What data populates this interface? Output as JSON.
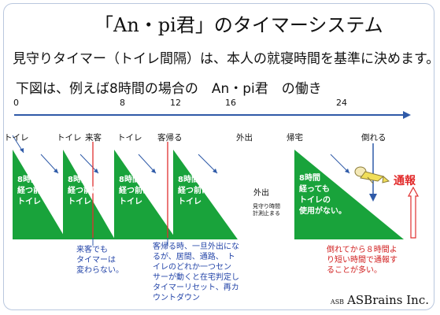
{
  "title": "「An・pi君」のタイマーシステム",
  "subtitle": "見守りタイマー（トイレ間隔）は、本人の就寝時間を基準に決めます。",
  "example": "下図は、例えば8時間の場合の　An・pi君　の働き",
  "timeline": {
    "labels": [
      "0",
      "8",
      "12",
      "16",
      "24"
    ]
  },
  "events": {
    "toilet1": "トイレ",
    "toilet2": "トイレ",
    "visitor": "来客",
    "toilet3": "トイレ",
    "leave": "客帰る",
    "out": "外出",
    "home": "帰宅",
    "fall": "倒れる"
  },
  "blocks": {
    "b1": "8時間\n経つ前に\nトイレ",
    "b2": "8時間\n経つ前に\nトイレ",
    "b3": "8時間\n経つ前に\nトイレ",
    "b4": "8時間\n経つ前に\nトイレ",
    "b5": "8時間\n経っても\nトイレの\n使用がない。"
  },
  "outing": {
    "label": "外出",
    "note": "見守り時間\n計測止まる"
  },
  "notes": {
    "visitor_note": "来客でも\nタイマーは\n変わらない。",
    "leave_note": "客帰る時、一旦外出にな\nるが、居間、通路、　ト\nイレのどれか一つセン\nサーが動くと在宅判定し\nタイマーリセット、再カ\nウントダウン",
    "fall_note": "倒れてから８時間よ\nり短い時間で通報す\nることが多い。"
  },
  "alert": "通報",
  "brand": {
    "prefix": "ASB",
    "name": "ASBrains Inc."
  },
  "colors": {
    "green": "#19a33b",
    "blue": "#2f5aa8",
    "red": "#e03030"
  }
}
